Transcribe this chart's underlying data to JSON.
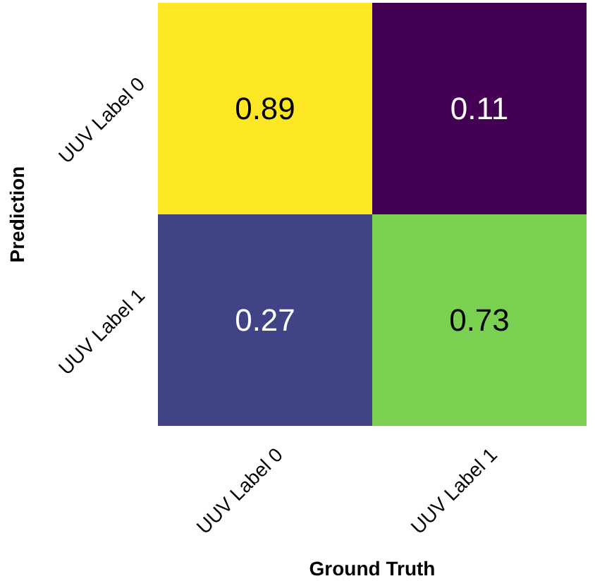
{
  "chart_data": {
    "type": "heatmap",
    "xlabel": "Ground Truth",
    "ylabel": "Prediction",
    "categories": [
      "UUV Label 0",
      "UUV Label 1"
    ],
    "y_categories": [
      "UUV Label 0",
      "UUV Label 1"
    ],
    "cells": [
      [
        0.89,
        0.11
      ],
      [
        0.27,
        0.73
      ]
    ],
    "data_labels": true
  }
}
